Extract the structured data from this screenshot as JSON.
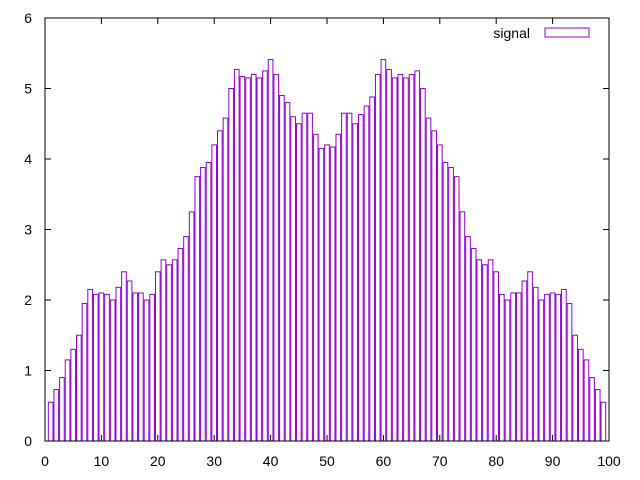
{
  "chart_data": {
    "type": "bar",
    "title": "",
    "xlabel": "",
    "ylabel": "",
    "xlim": [
      0,
      100
    ],
    "ylim": [
      0,
      6
    ],
    "grid": false,
    "legend_position": "top-right",
    "x_ticks": [
      "0",
      "10",
      "20",
      "30",
      "40",
      "50",
      "60",
      "70",
      "80",
      "90",
      "100"
    ],
    "y_ticks": [
      "0",
      "1",
      "2",
      "3",
      "4",
      "5",
      "6"
    ],
    "series": [
      {
        "name": "signal",
        "color": "#9400d3",
        "x": [
          1,
          2,
          3,
          4,
          5,
          6,
          7,
          8,
          9,
          10,
          11,
          12,
          13,
          14,
          15,
          16,
          17,
          18,
          19,
          20,
          21,
          22,
          23,
          24,
          25,
          26,
          27,
          28,
          29,
          30,
          31,
          32,
          33,
          34,
          35,
          36,
          37,
          38,
          39,
          40,
          41,
          42,
          43,
          44,
          45,
          46,
          47,
          48,
          49,
          50,
          51,
          52,
          53,
          54,
          55,
          56,
          57,
          58,
          59,
          60,
          61,
          62,
          63,
          64,
          65,
          66,
          67,
          68,
          69,
          70,
          71,
          72,
          73,
          74,
          75,
          76,
          77,
          78,
          79,
          80,
          81,
          82,
          83,
          84,
          85,
          86,
          87,
          88,
          89,
          90,
          91,
          92,
          93,
          94,
          95,
          96,
          97,
          98,
          99
        ],
        "values": [
          0.55,
          0.73,
          0.9,
          1.15,
          1.3,
          1.5,
          1.95,
          2.15,
          2.08,
          2.1,
          2.08,
          2.0,
          2.18,
          2.4,
          2.27,
          2.1,
          2.1,
          2.0,
          2.08,
          2.4,
          2.57,
          2.5,
          2.57,
          2.73,
          2.9,
          3.25,
          3.75,
          3.88,
          3.95,
          4.2,
          4.4,
          4.58,
          5.0,
          5.27,
          5.17,
          5.15,
          5.2,
          5.15,
          5.25,
          5.41,
          5.2,
          4.9,
          4.8,
          4.6,
          4.5,
          4.65,
          4.65,
          4.35,
          4.15,
          4.2,
          4.17,
          4.35,
          4.65,
          4.65,
          4.5,
          4.63,
          4.75,
          4.88,
          5.2,
          5.41,
          5.27,
          5.15,
          5.2,
          5.15,
          5.2,
          5.25,
          5.0,
          4.58,
          4.4,
          4.2,
          3.95,
          3.88,
          3.75,
          3.25,
          2.9,
          2.73,
          2.57,
          2.5,
          2.57,
          2.4,
          2.08,
          2.0,
          2.1,
          2.1,
          2.27,
          2.4,
          2.18,
          2.0,
          2.08,
          2.1,
          2.08,
          2.15,
          1.95,
          1.5,
          1.3,
          1.15,
          0.9,
          0.73,
          0.55
        ]
      }
    ]
  }
}
